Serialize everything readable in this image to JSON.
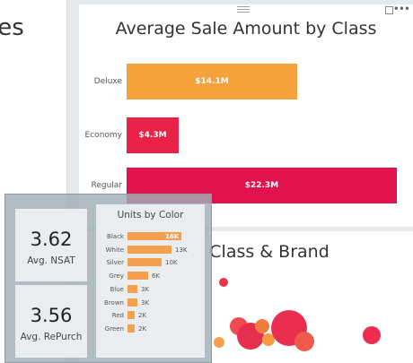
{
  "left_tile": {
    "title_fragment": "ies"
  },
  "chart": {
    "title": "Average Sale Amount by Class",
    "chart_data": {
      "type": "bar",
      "title": "Average Sale Amount by Class",
      "categories": [
        "Deluxe",
        "Economy",
        "Regular"
      ],
      "values": [
        14.1,
        4.3,
        22.3
      ],
      "value_labels": [
        "$14.1M",
        "$4.3M",
        "$22.3M"
      ],
      "colors": [
        "#f7a13c",
        "#ea2248",
        "#e2124f"
      ],
      "orientation": "horizontal",
      "xlim": [
        0,
        22.3
      ]
    }
  },
  "scatter": {
    "title_fragment": "y Class & Brand"
  },
  "kpis": [
    {
      "value": "3.62",
      "label": "Avg. NSAT"
    },
    {
      "value": "3.56",
      "label": "Avg. RePurch"
    }
  ],
  "units": {
    "title": "Units by Color",
    "chart_data": {
      "type": "bar",
      "title": "Units by Color",
      "orientation": "horizontal",
      "categories": [
        "Black",
        "White",
        "Silver",
        "Grey",
        "Blue",
        "Brown",
        "Red",
        "Green"
      ],
      "values": [
        16,
        13,
        10,
        6,
        3,
        3,
        2,
        2
      ],
      "value_labels": [
        "16K",
        "13K",
        "10K",
        "6K",
        "3K",
        "3K",
        "2K",
        "2K"
      ],
      "bar_color": "#f4a04c"
    }
  }
}
